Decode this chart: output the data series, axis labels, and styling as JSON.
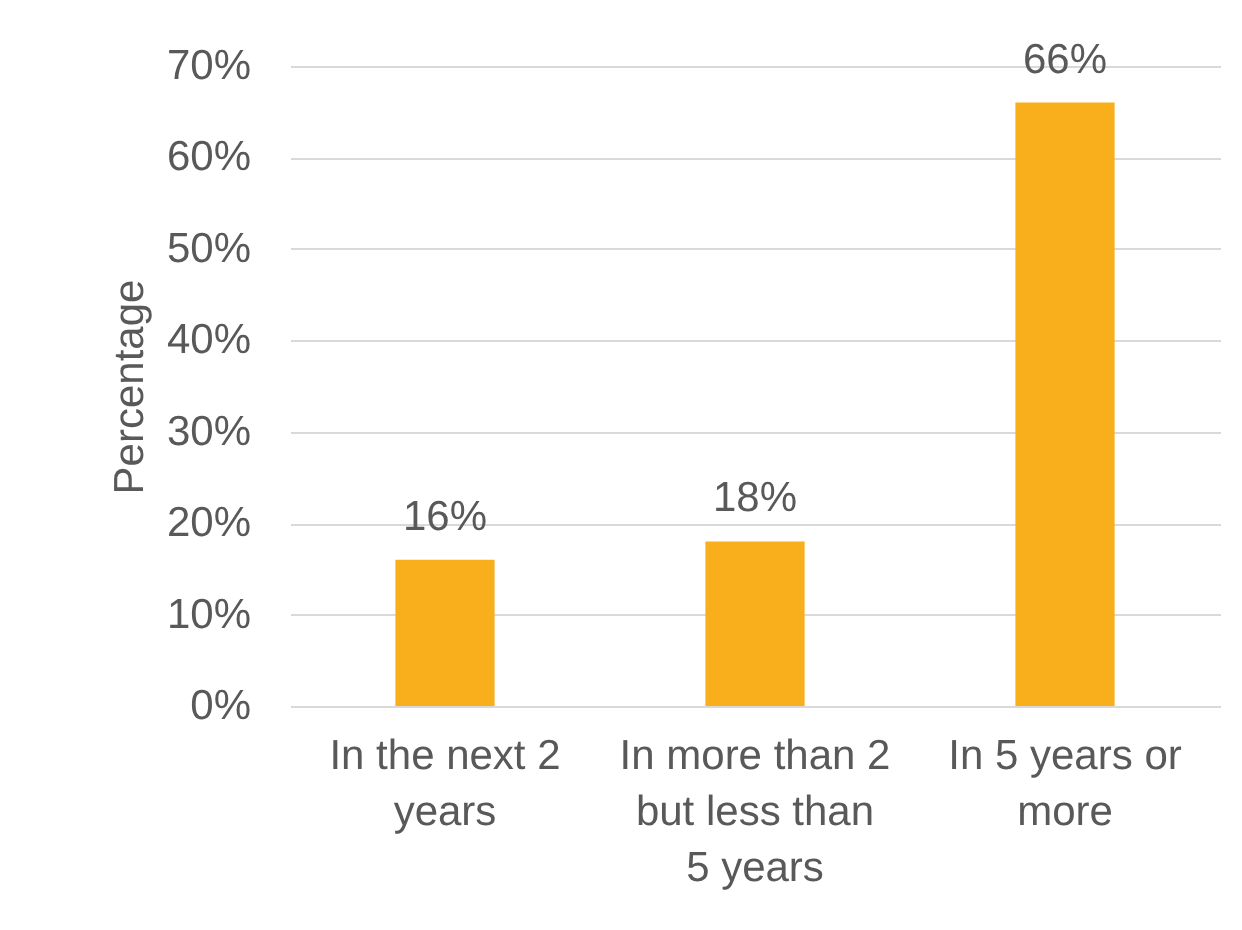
{
  "chart_data": {
    "type": "bar",
    "ylabel": "Percentage",
    "categories": [
      "In the next 2 years",
      "In more than 2 but less than 5 years",
      "In 5 years or more"
    ],
    "values": [
      16,
      18,
      66
    ],
    "color": "#f9ae1c",
    "ylim": [
      0,
      70
    ],
    "yticks": [
      {
        "value": 0,
        "label": "0%"
      },
      {
        "value": 10,
        "label": "10%"
      },
      {
        "value": 20,
        "label": "20%"
      },
      {
        "value": 30,
        "label": "30%"
      },
      {
        "value": 40,
        "label": "40%"
      },
      {
        "value": 50,
        "label": "50%"
      },
      {
        "value": 60,
        "label": "60%"
      },
      {
        "value": 70,
        "label": "70%"
      }
    ],
    "grid": "y",
    "value_labels": [
      "16%",
      "18%",
      "66%"
    ]
  }
}
